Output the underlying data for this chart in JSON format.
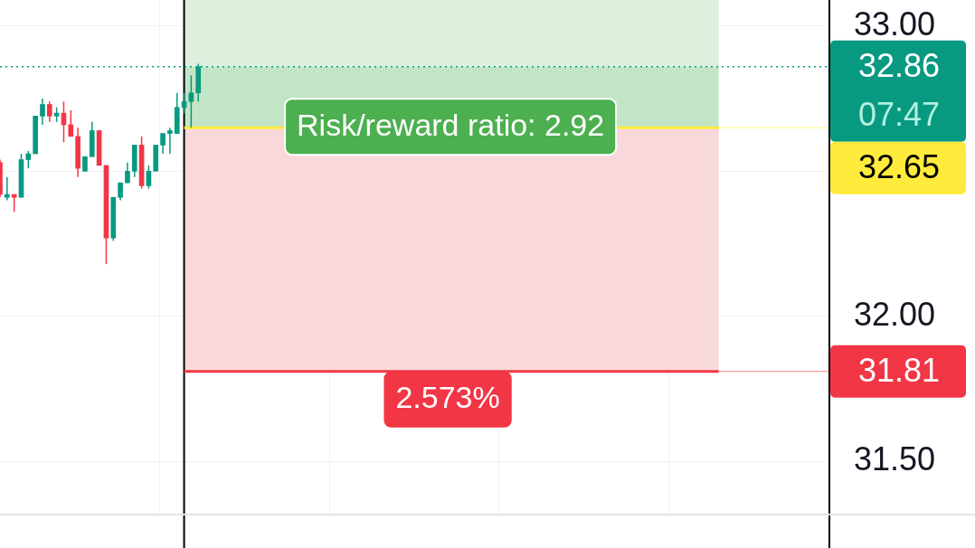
{
  "chart_data": {
    "type": "candlestick",
    "categories": [
      null,
      null,
      null,
      null,
      null,
      null,
      null,
      null,
      null,
      null,
      null,
      null,
      null,
      null,
      null,
      null,
      null,
      null,
      null,
      null,
      null,
      null,
      null,
      null,
      null,
      null,
      null,
      null,
      null,
      null,
      null,
      null,
      null,
      null,
      null,
      null,
      null,
      null,
      null,
      null,
      null,
      null,
      null,
      null,
      null,
      null,
      null,
      null,
      null,
      null,
      null,
      null,
      null,
      null,
      null,
      null,
      null,
      null,
      null,
      null,
      null,
      null,
      null,
      null,
      null,
      null,
      null,
      null,
      null,
      null,
      null,
      null,
      null,
      null,
      null,
      null,
      null,
      null,
      null,
      null,
      null,
      null,
      null,
      null,
      null,
      null,
      null,
      null,
      null,
      null,
      null,
      null,
      null,
      null,
      null,
      null,
      null,
      null,
      null,
      null,
      null,
      null,
      null,
      null,
      null,
      null,
      null,
      null,
      null,
      null,
      null,
      null,
      null,
      null,
      null,
      null,
      null,
      null
    ],
    "ohlc": [
      [
        32.53,
        32.54,
        32.41,
        32.42
      ],
      [
        32.41,
        32.48,
        32.4,
        32.42
      ],
      [
        32.42,
        32.42,
        32.36,
        32.41
      ],
      [
        32.41,
        32.56,
        32.41,
        32.54
      ],
      [
        32.54,
        32.57,
        32.51,
        32.56
      ],
      [
        32.56,
        32.69,
        32.56,
        32.69
      ],
      [
        32.69,
        32.75,
        32.66,
        32.73
      ],
      [
        32.73,
        32.74,
        32.67,
        32.69
      ],
      [
        32.69,
        32.72,
        32.67,
        32.7
      ],
      [
        32.7,
        32.74,
        32.6,
        32.66
      ],
      [
        32.66,
        32.71,
        32.62,
        32.62
      ],
      [
        32.62,
        32.65,
        32.48,
        32.51
      ],
      [
        32.5,
        32.55,
        32.5,
        32.55
      ],
      [
        32.55,
        32.67,
        32.55,
        32.64
      ],
      [
        32.64,
        32.64,
        32.52,
        32.52
      ],
      [
        32.52,
        32.52,
        32.18,
        32.27
      ],
      [
        32.27,
        32.41,
        32.26,
        32.41
      ],
      [
        32.41,
        32.46,
        32.4,
        32.46
      ],
      [
        32.46,
        32.53,
        32.46,
        32.5
      ],
      [
        32.5,
        32.59,
        32.48,
        32.59
      ],
      [
        32.59,
        32.62,
        32.44,
        32.45
      ],
      [
        32.45,
        32.52,
        32.44,
        32.5
      ],
      [
        32.5,
        32.59,
        32.5,
        32.59
      ],
      [
        32.59,
        32.63,
        32.56,
        32.63
      ],
      [
        32.63,
        32.65,
        32.56,
        32.64
      ],
      [
        32.63,
        32.77,
        32.63,
        32.72
      ],
      [
        32.72,
        32.77,
        32.7,
        32.74
      ],
      [
        32.74,
        32.83,
        32.65,
        32.77
      ],
      [
        32.77,
        32.87,
        32.74,
        32.86
      ],
      null,
      null,
      null,
      null,
      null,
      null,
      null,
      null,
      null,
      null,
      null,
      null,
      null,
      null,
      null,
      null,
      null,
      null,
      null,
      null,
      null,
      null,
      null,
      null,
      null,
      null,
      null,
      null,
      null,
      null,
      null,
      null,
      null,
      null,
      null,
      null,
      null,
      null,
      null,
      null,
      null,
      null,
      null,
      null,
      null,
      null,
      null,
      null,
      null,
      null,
      null,
      null,
      null,
      null,
      null,
      null,
      null,
      null,
      null,
      null,
      null,
      null,
      null,
      null,
      null,
      null,
      null,
      null,
      null,
      null,
      null,
      null,
      null,
      null,
      null,
      null,
      null,
      null,
      null,
      null,
      null,
      null,
      null,
      null,
      null,
      null,
      null,
      null,
      null
    ],
    "colors": [
      "#f23645",
      "#089981",
      "#f23645",
      "#089981",
      "#089981",
      "#089981",
      "#089981",
      "#f23645",
      "#089981",
      "#f23645",
      "#f23645",
      "#f23645",
      "#089981",
      "#089981",
      "#f23645",
      "#f23645",
      "#089981",
      "#089981",
      "#089981",
      "#089981",
      "#f23645",
      "#089981",
      "#089981",
      "#089981",
      "#089981",
      "#089981",
      "#089981",
      "#089981",
      "#089981",
      null,
      null,
      null,
      null,
      null,
      null,
      null,
      null,
      null,
      null,
      null,
      null,
      null,
      null,
      null,
      null,
      null,
      null,
      null,
      null,
      null,
      null,
      null,
      null,
      null,
      null,
      null,
      null,
      null,
      null,
      null,
      null,
      null,
      null,
      null,
      null,
      null,
      null,
      null,
      null,
      null,
      null,
      null,
      null,
      null,
      null,
      null,
      null,
      null,
      null,
      null,
      null,
      null,
      null,
      null,
      null,
      null,
      null,
      null,
      null,
      null,
      null,
      null,
      null,
      null,
      null,
      null,
      null,
      null,
      null,
      null,
      null,
      null,
      null,
      null,
      null,
      null,
      null,
      null,
      null,
      null,
      null,
      null,
      null,
      null,
      null,
      null,
      null,
      null
    ],
    "ylim": [
      31.32,
      33.09
    ],
    "yticks": [
      {
        "value": 31.5,
        "label": "31.50"
      },
      {
        "value": 32,
        "label": "32.00"
      },
      {
        "value": 32.5,
        "label": null
      },
      {
        "value": 33,
        "label": "33.00"
      }
    ],
    "grid": true,
    "tick_labels": "y",
    "bands": [
      {
        "axis": "y",
        "from": 32.65,
        "to": 32.86,
        "color": "#c2e5c5"
      },
      {
        "axis": "y",
        "from": 32.86,
        "to": 33.09,
        "color": "#ddf0de"
      },
      {
        "axis": "y",
        "from": 31.81,
        "to": 32.65,
        "color": "#f9d8db"
      }
    ],
    "ref_lines": [
      {
        "axis": "y",
        "value": 32.86,
        "label": "32.86\n07:47",
        "color": "#089981",
        "line_style": "dotted"
      },
      {
        "axis": "y",
        "value": 32.65,
        "label": "32.65",
        "color": "#ffeb3b",
        "line_style": "solid"
      },
      {
        "axis": "y",
        "value": 31.81,
        "label": "31.81",
        "color": "#f23645",
        "line_style": "solid"
      }
    ],
    "annotations": [
      "Risk/reward ratio: 2.92",
      "2.573%"
    ]
  }
}
